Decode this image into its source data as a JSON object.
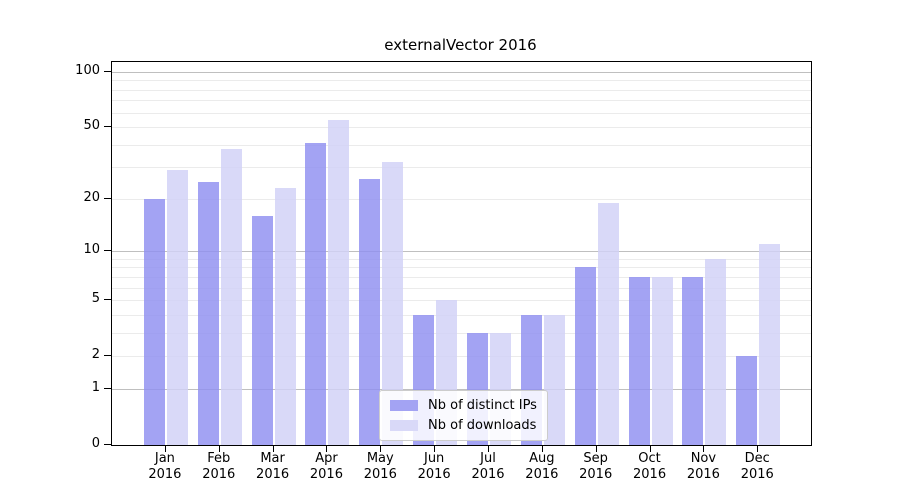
{
  "chart_data": {
    "type": "bar",
    "title": "externalVector 2016",
    "categories": [
      "Jan 2016",
      "Feb 2016",
      "Mar 2016",
      "Apr 2016",
      "May 2016",
      "Jun 2016",
      "Jul 2016",
      "Aug 2016",
      "Sep 2016",
      "Oct 2016",
      "Nov 2016",
      "Dec 2016"
    ],
    "series": [
      {
        "name": "Nb of distinct IPs",
        "color": "#a3a3f3",
        "values": [
          20,
          25,
          16,
          41,
          26,
          4,
          3,
          4,
          8,
          7,
          7,
          2
        ]
      },
      {
        "name": "Nb of downloads",
        "color": "#d9d9f8",
        "values": [
          29,
          38,
          23,
          55,
          32,
          5,
          3,
          4,
          19,
          7,
          9,
          11
        ]
      }
    ],
    "yscale": "log1p",
    "yticks": [
      0,
      1,
      2,
      5,
      10,
      20,
      50,
      100
    ],
    "major_grid_values": [
      1,
      10,
      100
    ],
    "ylim": [
      0,
      113
    ],
    "grid": true,
    "legend_position": "lower center",
    "colors": {
      "major_grid": "#bfbfbf",
      "minor_grid": "#ebebeb",
      "axis": "#000000",
      "background": "#ffffff"
    }
  }
}
